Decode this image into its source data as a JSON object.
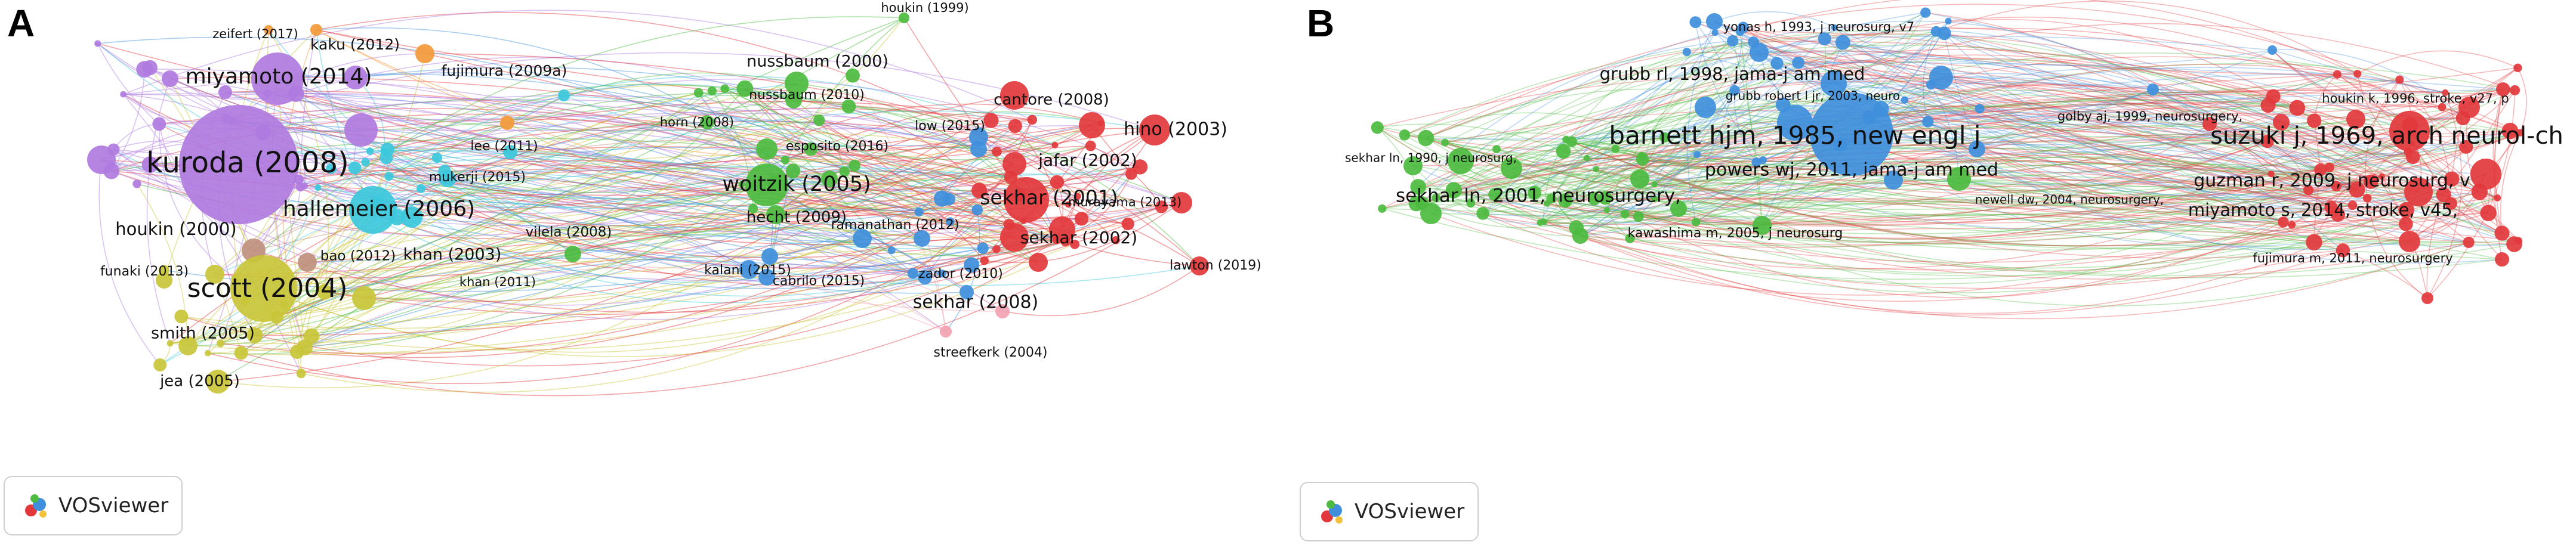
{
  "panel_a": {
    "letter": "A",
    "badge_text": "VOSviewer",
    "labels": [
      {
        "text": "zeifert (2017)",
        "size": 21
      },
      {
        "text": "kaku (2012)",
        "size": 25
      },
      {
        "text": "miyamoto (2014)",
        "size": 36
      },
      {
        "text": "fujimura (2009a)",
        "size": 25
      },
      {
        "text": "kuroda (2008)",
        "size": 48
      },
      {
        "text": "lee (2011)",
        "size": 22
      },
      {
        "text": "mukerji (2015)",
        "size": 22
      },
      {
        "text": "hallemeier (2006)",
        "size": 36
      },
      {
        "text": "houkin (2000)",
        "size": 29
      },
      {
        "text": "bao (2012)",
        "size": 23
      },
      {
        "text": "khan (2003)",
        "size": 27
      },
      {
        "text": "khan (2011)",
        "size": 21
      },
      {
        "text": "funaki (2013)",
        "size": 22
      },
      {
        "text": "scott (2004)",
        "size": 44
      },
      {
        "text": "smith (2005)",
        "size": 27
      },
      {
        "text": "jea (2005)",
        "size": 26
      },
      {
        "text": "houkin (1999)",
        "size": 21
      },
      {
        "text": "nussbaum (2000)",
        "size": 27
      },
      {
        "text": "nussbaum (2010)",
        "size": 22
      },
      {
        "text": "horn (2008)",
        "size": 21
      },
      {
        "text": "esposito (2016)",
        "size": 22
      },
      {
        "text": "woitzik (2005)",
        "size": 35
      },
      {
        "text": "hecht (2009)",
        "size": 26
      },
      {
        "text": "vilela (2008)",
        "size": 23
      },
      {
        "text": "ramanathan (2012)",
        "size": 22
      },
      {
        "text": "kalani (2015)",
        "size": 22
      },
      {
        "text": "cabrilo (2015)",
        "size": 22
      },
      {
        "text": "cantore (2008)",
        "size": 26
      },
      {
        "text": "low (2015)",
        "size": 22
      },
      {
        "text": "hino (2003)",
        "size": 30
      },
      {
        "text": "jafar (2002)",
        "size": 28
      },
      {
        "text": "sekhar (2001)",
        "size": 33
      },
      {
        "text": "murayama (2013)",
        "size": 21
      },
      {
        "text": "sekhar (2002)",
        "size": 28
      },
      {
        "text": "zador (2010)",
        "size": 22
      },
      {
        "text": "lawton (2019)",
        "size": 22
      },
      {
        "text": "sekhar (2008)",
        "size": 30
      },
      {
        "text": "streefkerk (2004)",
        "size": 22
      }
    ]
  },
  "panel_b": {
    "letter": "B",
    "badge_text": "VOSviewer",
    "labels": [
      {
        "text": "yonas h, 1993, j neurosurg, v7",
        "size": 21
      },
      {
        "text": "grubb rl, 1998, jama-j am med",
        "size": 29
      },
      {
        "text": "grubb robert l jr, 2003, neuro",
        "size": 20
      },
      {
        "text": "barnett hjm, 1985, new engl j",
        "size": 42
      },
      {
        "text": "golby aj, 1999, neurosurgery,",
        "size": 21
      },
      {
        "text": "suzuki j, 1969, arch neurol-ch",
        "size": 40
      },
      {
        "text": "houkin k, 1996, stroke, v27, p",
        "size": 21
      },
      {
        "text": "sekhar ln, 1990, j neurosurg,",
        "size": 20
      },
      {
        "text": "powers wj, 2011, jama-j am med",
        "size": 30
      },
      {
        "text": "guzman r, 2009, j neurosurg, v",
        "size": 30
      },
      {
        "text": "sekhar ln, 2001, neurosurgery,",
        "size": 31
      },
      {
        "text": "newell dw, 2004, neurosurgery,",
        "size": 20
      },
      {
        "text": "miyamoto s, 2014, stroke, v45,",
        "size": 29
      },
      {
        "text": "kawashima m, 2005, j neurosurg",
        "size": 22
      },
      {
        "text": "fujimura m, 2011, neurosurgery",
        "size": 21
      }
    ]
  },
  "colors": {
    "purple": "#b07be0",
    "orange": "#f39a3a",
    "cyan": "#3cc8dc",
    "yellow": "#c9c53a",
    "brown": "#c0907e",
    "green": "#4cbb3f",
    "blue": "#3f8fdc",
    "red": "#e2383c",
    "pink": "#f2a2b2"
  }
}
